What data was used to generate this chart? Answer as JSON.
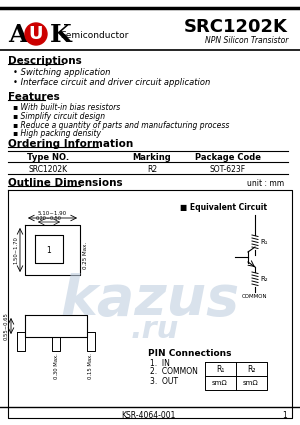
{
  "title": "SRC1202K",
  "subtitle": "NPN Silicon Transistor",
  "logo_circle_color": "#cc0000",
  "desc_title": "Descriptions",
  "desc_items": [
    "Switching application",
    "Interface circuit and driver circuit application"
  ],
  "feat_title": "Features",
  "feat_items": [
    "With built-in bias resistors",
    "Simplify circuit design",
    "Reduce a quantity of parts and manufacturing process",
    "High packing density"
  ],
  "order_title": "Ordering Information",
  "order_cols": [
    "Type NO.",
    "Marking",
    "Package Code"
  ],
  "order_data": [
    "SRC1202K",
    "R2",
    "SOT-623F"
  ],
  "outline_title": "Outline Dimensions",
  "unit_text": "unit : mm",
  "pin_title": "PIN Connections",
  "pin_items": [
    "1.  IN",
    "2.  COMMON",
    "3.  OUT"
  ],
  "equiv_title": "■ Equivalent Circuit",
  "footer_text": "KSR-4064-001",
  "footer_page": "1",
  "bg_color": "#ffffff",
  "watermark_color": "#c0cfe0"
}
